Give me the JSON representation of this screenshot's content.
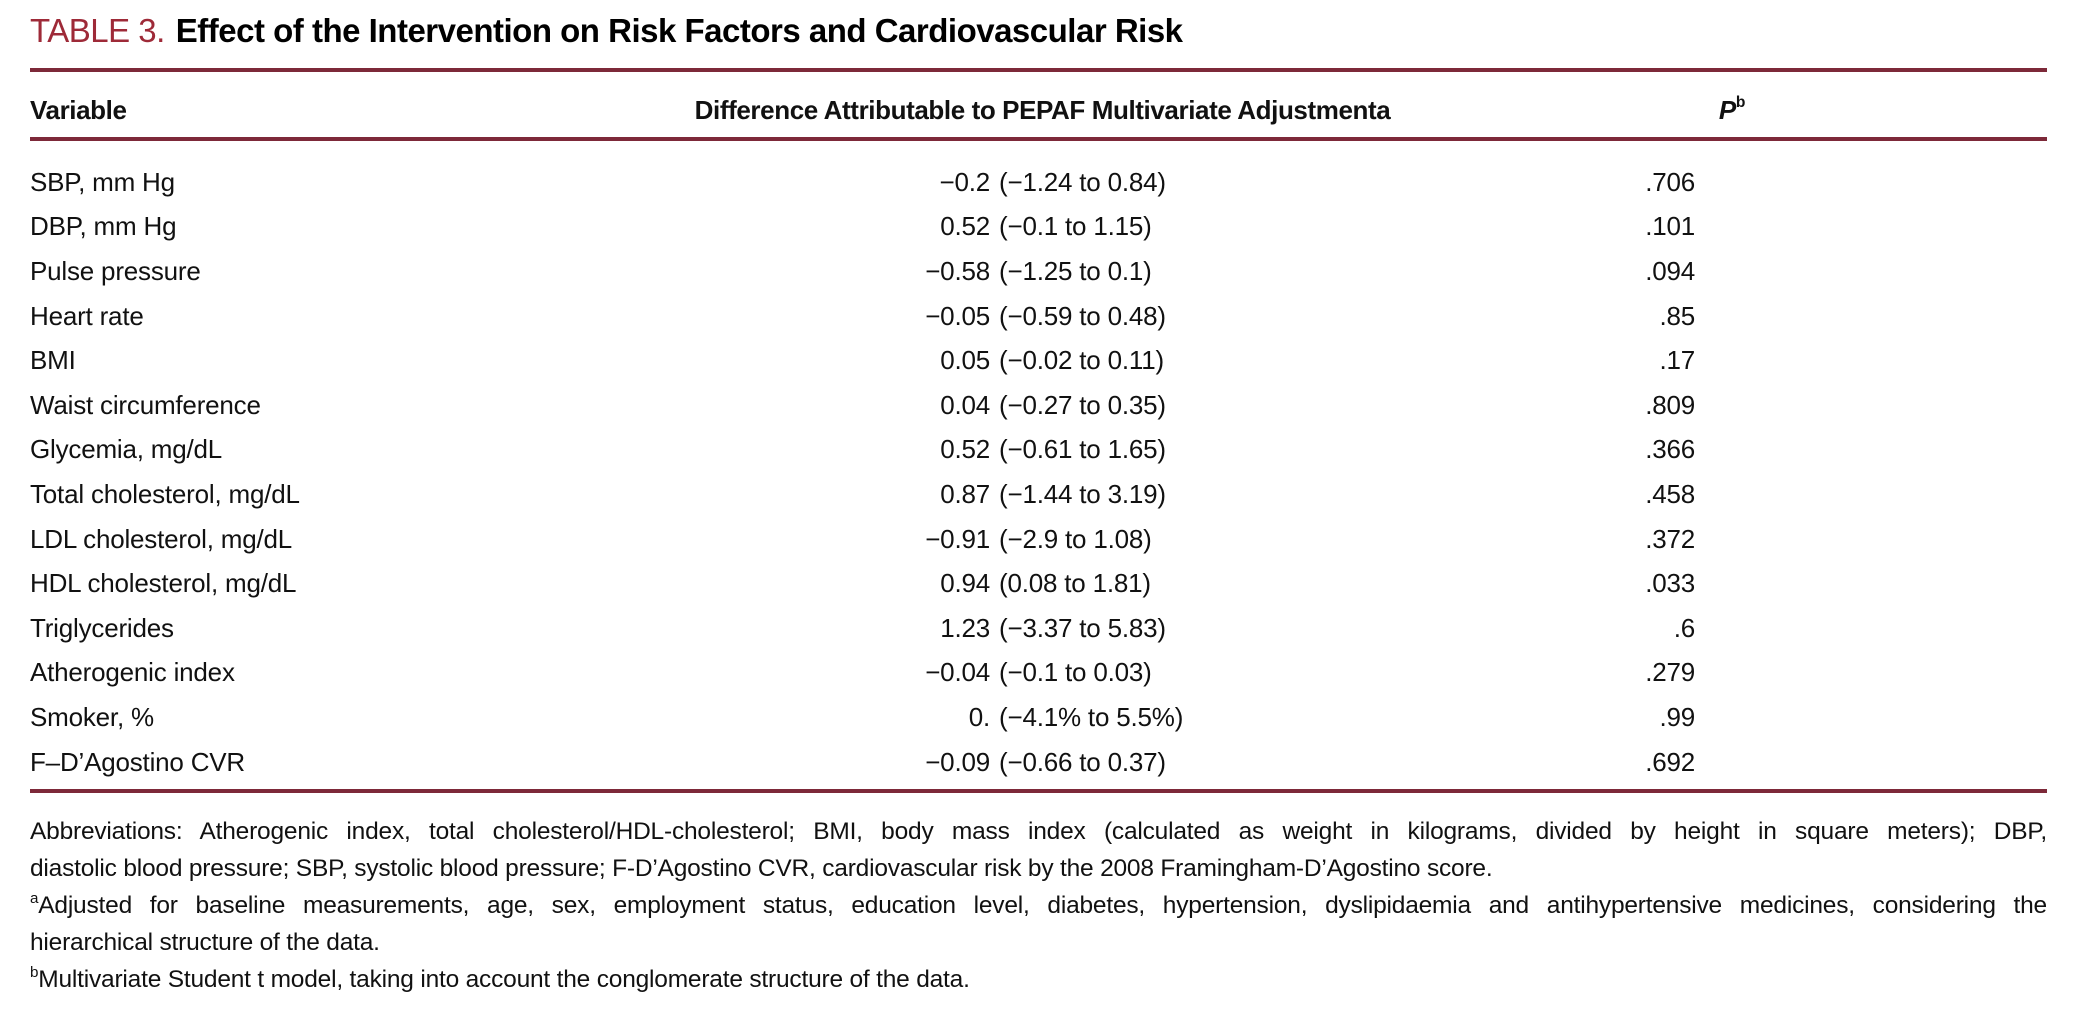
{
  "title": {
    "tag": "TABLE 3.",
    "text": "Effect of the Intervention on Risk Factors and Cardiovascular Risk"
  },
  "table": {
    "columns": {
      "variable": "Variable",
      "difference": "Difference Attributable to PEPAF Multivariate Adjustment",
      "difference_sup": "a",
      "p": "P",
      "p_sup": "b"
    },
    "rows": [
      {
        "variable": "SBP, mm Hg",
        "estimate": "−0.2",
        "ci": "(−1.24 to 0.84)",
        "p": ".706"
      },
      {
        "variable": "DBP, mm Hg",
        "estimate": "0.52",
        "ci": "(−0.1 to 1.15)",
        "p": ".101"
      },
      {
        "variable": "Pulse pressure",
        "estimate": "−0.58",
        "ci": "(−1.25 to 0.1)",
        "p": ".094"
      },
      {
        "variable": "Heart rate",
        "estimate": "−0.05",
        "ci": "(−0.59 to 0.48)",
        "p": ".85"
      },
      {
        "variable": "BMI",
        "estimate": "0.05",
        "ci": "(−0.02 to 0.11)",
        "p": ".17"
      },
      {
        "variable": "Waist circumference",
        "estimate": "0.04",
        "ci": "(−0.27 to 0.35)",
        "p": ".809"
      },
      {
        "variable": "Glycemia, mg/dL",
        "estimate": "0.52",
        "ci": "(−0.61 to 1.65)",
        "p": ".366"
      },
      {
        "variable": "Total cholesterol, mg/dL",
        "estimate": "0.87",
        "ci": "(−1.44 to 3.19)",
        "p": ".458"
      },
      {
        "variable": "LDL cholesterol, mg/dL",
        "estimate": "−0.91",
        "ci": "(−2.9 to 1.08)",
        "p": ".372"
      },
      {
        "variable": "HDL cholesterol, mg/dL",
        "estimate": "0.94",
        "ci": "(0.08 to 1.81)",
        "p": ".033"
      },
      {
        "variable": "Triglycerides",
        "estimate": "1.23",
        "ci": "(−3.37 to 5.83)",
        "p": ".6"
      },
      {
        "variable": "Atherogenic index",
        "estimate": "−0.04",
        "ci": "(−0.1 to 0.03)",
        "p": ".279"
      },
      {
        "variable": "Smoker, %",
        "estimate": "0.",
        "ci": "(−4.1% to 5.5%)",
        "p": ".99"
      },
      {
        "variable": "F–D’Agostino CVR",
        "estimate": "−0.09",
        "ci": "(−0.66 to 0.37)",
        "p": ".692"
      }
    ]
  },
  "footnotes": {
    "lines": [
      {
        "sup": "",
        "justify": true,
        "text": "Abbreviations: Atherogenic index, total cholesterol/HDL-cholesterol; BMI, body mass index (calculated as weight in kilograms, divided by height in square meters); DBP,"
      },
      {
        "sup": "",
        "justify": false,
        "text": "diastolic blood pressure; SBP, systolic blood pressure; F-D’Agostino CVR, cardiovascular risk by the 2008 Framingham-D’Agostino score."
      },
      {
        "sup": "a",
        "justify": true,
        "text": "Adjusted for baseline measurements, age, sex, employment status, education level, diabetes, hypertension, dyslipidaemia and antihypertensive medicines, considering the"
      },
      {
        "sup": "",
        "justify": false,
        "text": "hierarchical structure of the data."
      },
      {
        "sup": "b",
        "justify": false,
        "text": "Multivariate Student t model, taking into account the conglomerate structure of the data."
      }
    ]
  },
  "colors": {
    "accent_red": "#9e2a38",
    "rule_maroon": "#7d2939",
    "text": "#111111",
    "background": "#ffffff"
  }
}
